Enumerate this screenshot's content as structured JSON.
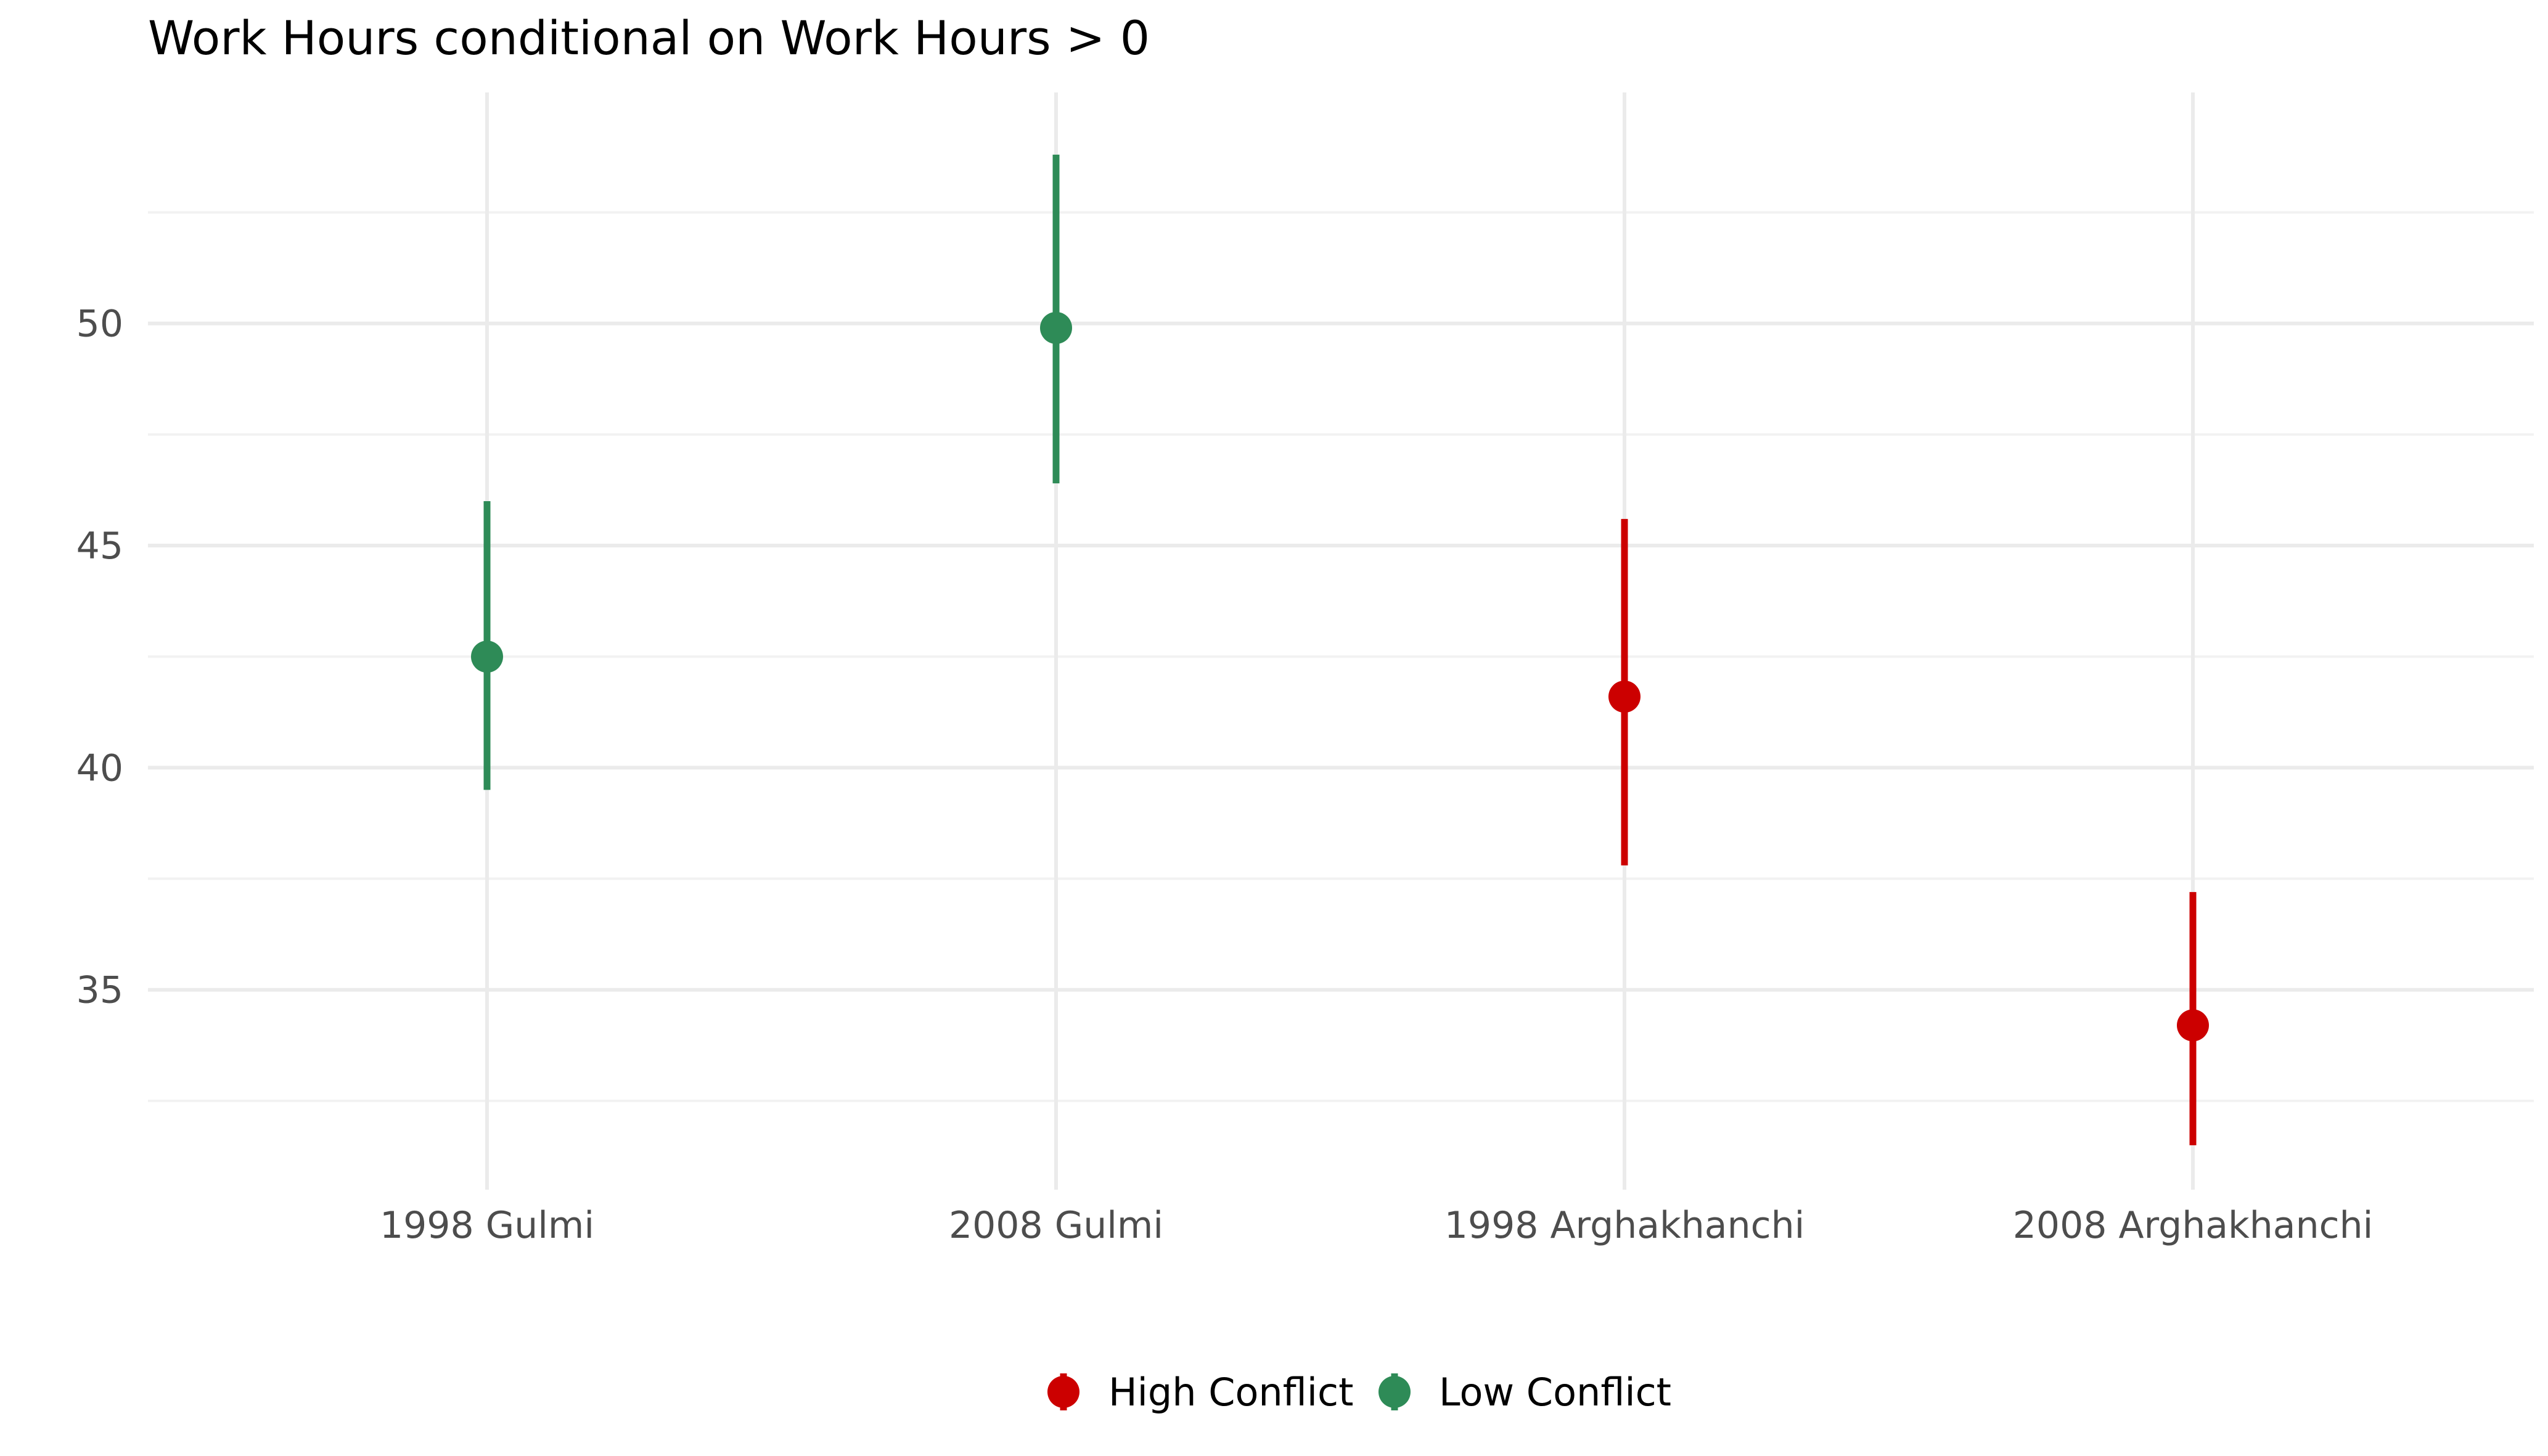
{
  "colors": {
    "high_conflict": "#cc0000",
    "low_conflict": "#2e8b57",
    "grid_major": "#ebebeb",
    "grid_minor": "#f2f2f2",
    "axis_text": "#4d4d4d",
    "background": "#ffffff"
  },
  "chart_data": {
    "type": "scatter",
    "subtype": "point-range",
    "title": "Work Hours conditional on Work Hours > 0",
    "xlabel": "",
    "ylabel": "",
    "categories": [
      "1998 Gulmi",
      "2008 Gulmi",
      "1998 Arghakhanchi",
      "2008 Arghakhanchi"
    ],
    "ylim": [
      30.5,
      55.2
    ],
    "y_ticks": [
      35,
      40,
      45,
      50
    ],
    "y_minor_ticks": [
      32.5,
      37.5,
      42.5,
      47.5,
      52.5
    ],
    "grid": true,
    "legend_position": "bottom",
    "series": [
      {
        "name": "High Conflict",
        "color": "#cc0000",
        "points": [
          {
            "category": "1998 Arghakhanchi",
            "y": 41.6,
            "low": 37.8,
            "high": 45.6
          },
          {
            "category": "2008 Arghakhanchi",
            "y": 34.2,
            "low": 31.5,
            "high": 37.2
          }
        ]
      },
      {
        "name": "Low Conflict",
        "color": "#2e8b57",
        "points": [
          {
            "category": "1998 Gulmi",
            "y": 42.5,
            "low": 39.5,
            "high": 46.0
          },
          {
            "category": "2008 Gulmi",
            "y": 49.9,
            "low": 46.4,
            "high": 53.8
          }
        ]
      }
    ]
  }
}
